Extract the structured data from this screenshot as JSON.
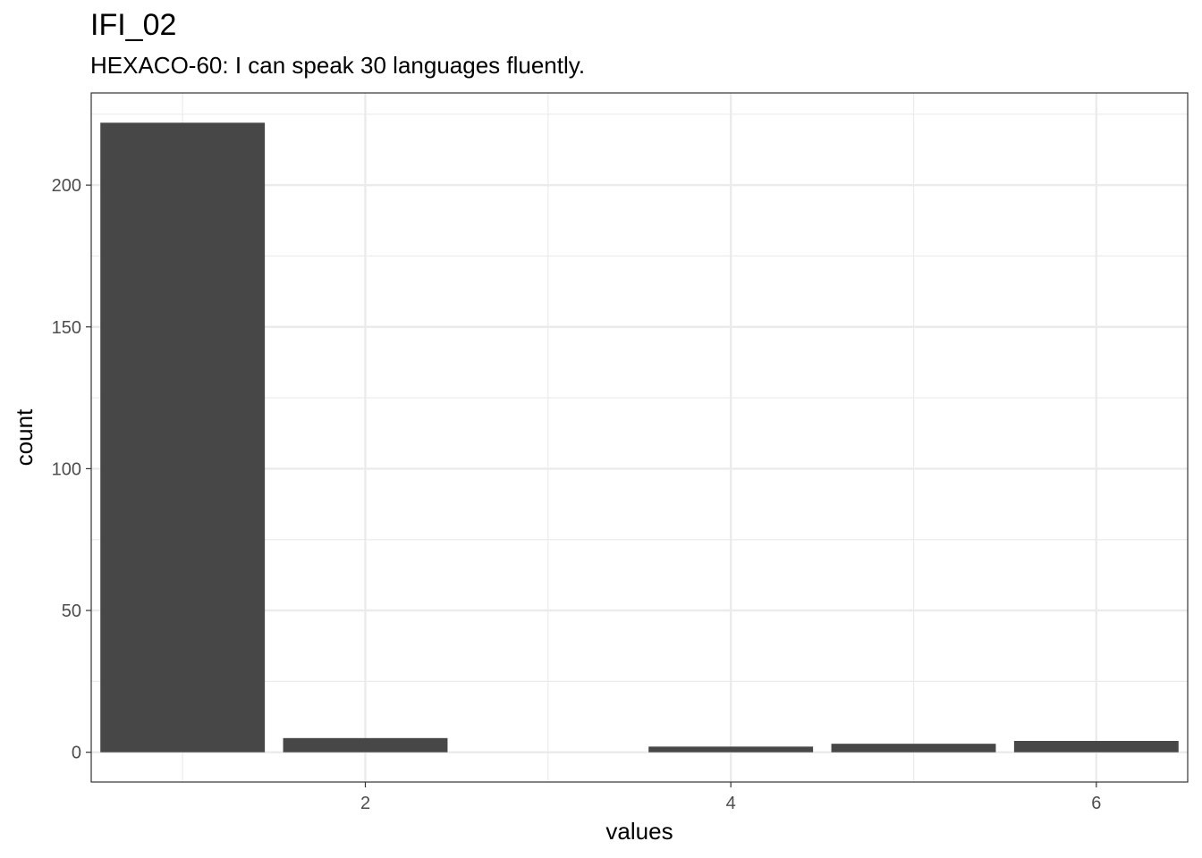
{
  "chart_data": {
    "type": "bar",
    "title": "IFI_02",
    "subtitle": "HEXACO-60: I can speak 30 languages fluently.",
    "xlabel": "values",
    "ylabel": "count",
    "x": [
      1,
      2,
      4,
      5,
      6
    ],
    "values": [
      222,
      5,
      2,
      3,
      4
    ],
    "xlim": [
      0.5,
      6.5
    ],
    "ylim": [
      -10.5,
      232.5
    ],
    "x_ticks": [
      2,
      4,
      6
    ],
    "y_ticks": [
      0,
      50,
      100,
      150,
      200
    ],
    "grid": true,
    "bar_color": "#474747",
    "grid_color": "#ebebeb",
    "panel_border_color": "#333333"
  }
}
